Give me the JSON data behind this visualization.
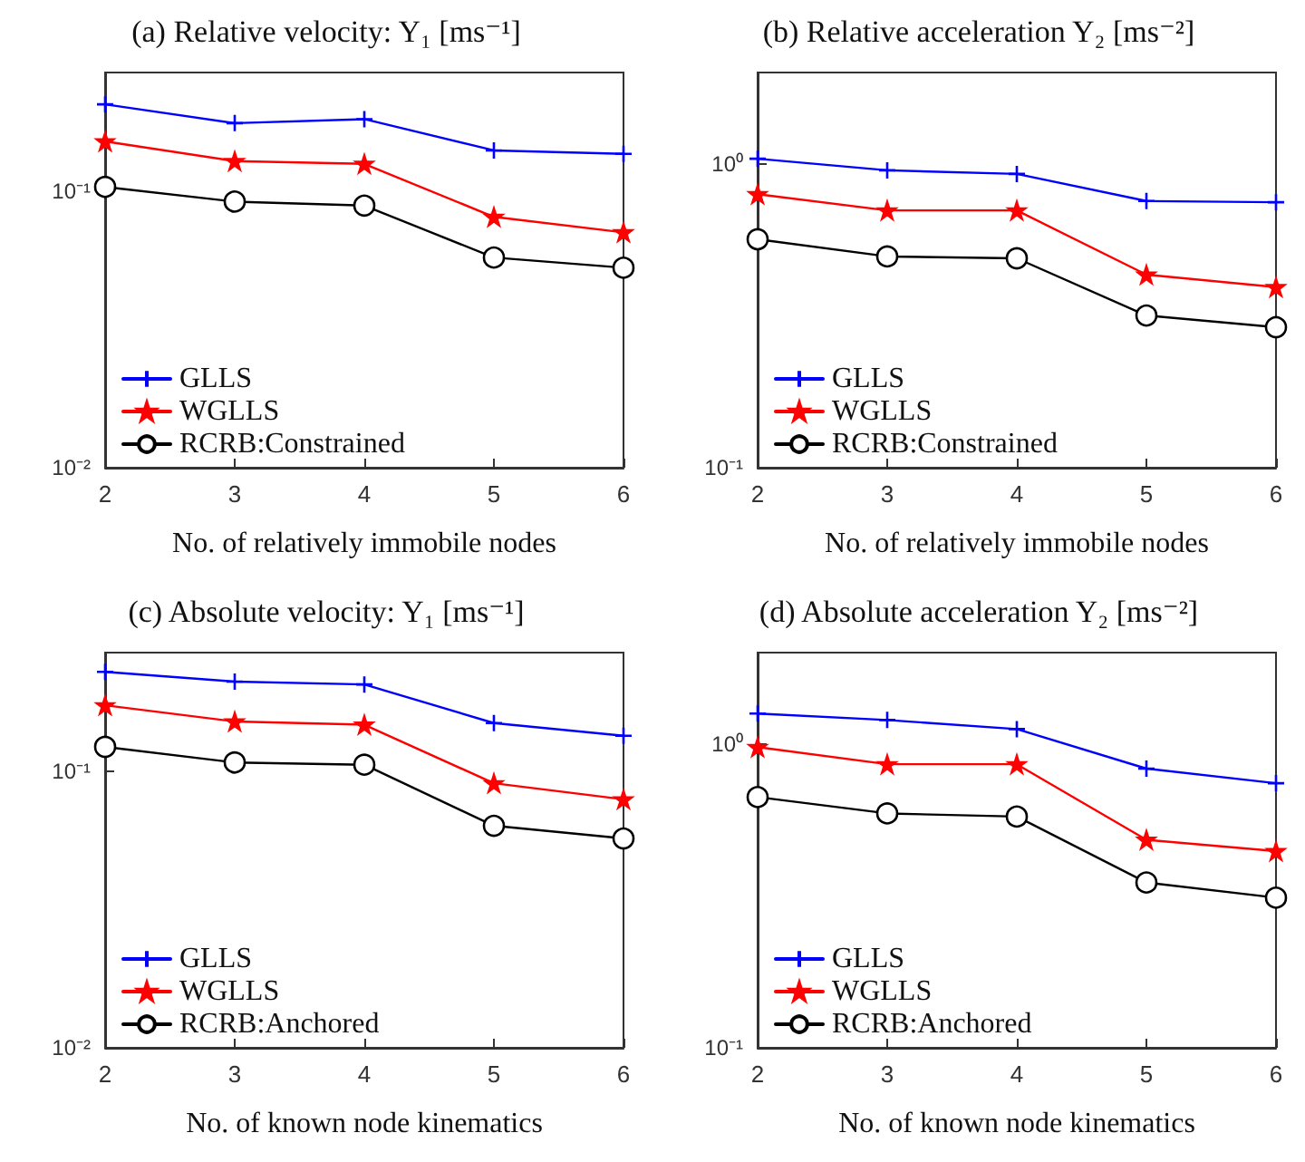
{
  "chart_data": [
    {
      "type": "line",
      "title": "(a) Relative velocity: Y₁ [ms⁻¹]",
      "xlabel": "No. of relatively immobile nodes",
      "x": [
        2,
        3,
        4,
        5,
        6
      ],
      "xlim": [
        2,
        6
      ],
      "xticks": [
        2,
        3,
        4,
        5,
        6
      ],
      "log": "y",
      "ylim": [
        0.01,
        0.27
      ],
      "yticks": [
        {
          "value": 0.01,
          "label": "10⁻²"
        },
        {
          "value": 0.1,
          "label": "10⁻¹"
        }
      ],
      "legend": "bottom left",
      "series": [
        {
          "name": "GLLS",
          "color": "#0000ff",
          "marker": "cross",
          "values": [
            0.207,
            0.177,
            0.183,
            0.141,
            0.137
          ]
        },
        {
          "name": "WGLLS",
          "color": "#ff0000",
          "marker": "star",
          "values": [
            0.152,
            0.129,
            0.126,
            0.081,
            0.0712
          ]
        },
        {
          "name": "RCRB:Constrained",
          "color": "#000000",
          "marker": "circle",
          "values": [
            0.104,
            0.092,
            0.089,
            0.0577,
            0.053
          ]
        }
      ]
    },
    {
      "type": "line",
      "title": "(b) Relative acceleration Y₂ [ms⁻²]",
      "xlabel": "No. of relatively immobile nodes",
      "x": [
        2,
        3,
        4,
        5,
        6
      ],
      "xlim": [
        2,
        6
      ],
      "xticks": [
        2,
        3,
        4,
        5,
        6
      ],
      "log": "y",
      "ylim": [
        0.1,
        2
      ],
      "yticks": [
        {
          "value": 0.1,
          "label": "10⁻¹"
        },
        {
          "value": 1,
          "label": "10⁰"
        }
      ],
      "legend": "bottom left",
      "series": [
        {
          "name": "GLLS",
          "color": "#0000ff",
          "marker": "cross",
          "values": [
            1.04,
            0.953,
            0.927,
            0.755,
            0.748
          ]
        },
        {
          "name": "WGLLS",
          "color": "#ff0000",
          "marker": "star",
          "values": [
            0.795,
            0.703,
            0.703,
            0.432,
            0.393
          ]
        },
        {
          "name": "RCRB:Constrained",
          "color": "#000000",
          "marker": "circle",
          "values": [
            0.565,
            0.496,
            0.489,
            0.317,
            0.29
          ]
        }
      ]
    },
    {
      "type": "line",
      "title": "(c) Absolute velocity: Y₁ [ms⁻¹]",
      "xlabel": "No. of known node kinematics",
      "x": [
        2,
        3,
        4,
        5,
        6
      ],
      "xlim": [
        2,
        6
      ],
      "xticks": [
        2,
        3,
        4,
        5,
        6
      ],
      "log": "y",
      "ylim": [
        0.01,
        0.27
      ],
      "yticks": [
        {
          "value": 0.01,
          "label": "10⁻²"
        },
        {
          "value": 0.1,
          "label": "10⁻¹"
        }
      ],
      "legend": "bottom left",
      "series": [
        {
          "name": "GLLS",
          "color": "#0000ff",
          "marker": "cross",
          "values": [
            0.23,
            0.212,
            0.207,
            0.15,
            0.135
          ]
        },
        {
          "name": "WGLLS",
          "color": "#ff0000",
          "marker": "star",
          "values": [
            0.174,
            0.152,
            0.148,
            0.0908,
            0.0794
          ]
        },
        {
          "name": "RCRB:Anchored",
          "color": "#000000",
          "marker": "circle",
          "values": [
            0.123,
            0.108,
            0.106,
            0.0637,
            0.0573
          ]
        }
      ]
    },
    {
      "type": "line",
      "title": "(d) Absolute acceleration Y₂ [ms⁻²]",
      "xlabel": "No. of known node kinematics",
      "x": [
        2,
        3,
        4,
        5,
        6
      ],
      "xlim": [
        2,
        6
      ],
      "xticks": [
        2,
        3,
        4,
        5,
        6
      ],
      "log": "y",
      "ylim": [
        0.1,
        2
      ],
      "yticks": [
        {
          "value": 0.1,
          "label": "10⁻¹"
        },
        {
          "value": 1,
          "label": "10⁰"
        }
      ],
      "legend": "bottom left",
      "series": [
        {
          "name": "GLLS",
          "color": "#0000ff",
          "marker": "cross",
          "values": [
            1.26,
            1.2,
            1.12,
            0.83,
            0.743
          ]
        },
        {
          "name": "WGLLS",
          "color": "#ff0000",
          "marker": "star",
          "values": [
            0.977,
            0.858,
            0.858,
            0.484,
            0.444
          ]
        },
        {
          "name": "RCRB:Anchored",
          "color": "#000000",
          "marker": "circle",
          "values": [
            0.669,
            0.591,
            0.577,
            0.35,
            0.312
          ]
        }
      ]
    }
  ]
}
